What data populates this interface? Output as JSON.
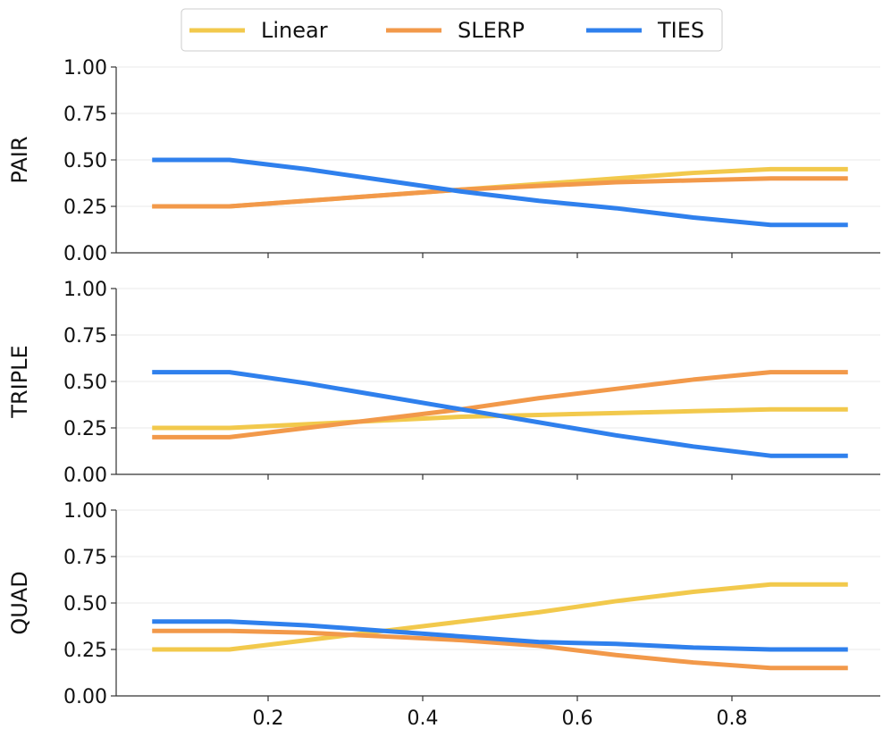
{
  "chart_data": [
    {
      "type": "line",
      "ylabel": "PAIR",
      "ylim": [
        0,
        1
      ],
      "xlim": [
        0,
        1
      ],
      "x": [
        0.05,
        0.15,
        0.25,
        0.35,
        0.45,
        0.55,
        0.65,
        0.75,
        0.85,
        0.95
      ],
      "series": [
        {
          "name": "Linear",
          "color": "#f2c94c",
          "values": [
            0.25,
            0.25,
            0.28,
            0.31,
            0.34,
            0.37,
            0.4,
            0.43,
            0.45,
            0.45
          ]
        },
        {
          "name": "SLERP",
          "color": "#f2994a",
          "values": [
            0.25,
            0.25,
            0.28,
            0.31,
            0.34,
            0.36,
            0.38,
            0.39,
            0.4,
            0.4
          ]
        },
        {
          "name": "TIES",
          "color": "#2f80ed",
          "values": [
            0.5,
            0.5,
            0.45,
            0.39,
            0.33,
            0.28,
            0.24,
            0.19,
            0.15,
            0.15
          ]
        }
      ]
    },
    {
      "type": "line",
      "ylabel": "TRIPLE",
      "ylim": [
        0,
        1
      ],
      "xlim": [
        0,
        1
      ],
      "x": [
        0.05,
        0.15,
        0.25,
        0.35,
        0.45,
        0.55,
        0.65,
        0.75,
        0.85,
        0.95
      ],
      "series": [
        {
          "name": "Linear",
          "color": "#f2c94c",
          "values": [
            0.25,
            0.25,
            0.27,
            0.29,
            0.31,
            0.32,
            0.33,
            0.34,
            0.35,
            0.35
          ]
        },
        {
          "name": "SLERP",
          "color": "#f2994a",
          "values": [
            0.2,
            0.2,
            0.25,
            0.3,
            0.35,
            0.41,
            0.46,
            0.51,
            0.55,
            0.55
          ]
        },
        {
          "name": "TIES",
          "color": "#2f80ed",
          "values": [
            0.55,
            0.55,
            0.49,
            0.42,
            0.35,
            0.28,
            0.21,
            0.15,
            0.1,
            0.1
          ]
        }
      ]
    },
    {
      "type": "line",
      "ylabel": "QUAD",
      "ylim": [
        0,
        1
      ],
      "xlim": [
        0,
        1
      ],
      "x": [
        0.05,
        0.15,
        0.25,
        0.35,
        0.45,
        0.55,
        0.65,
        0.75,
        0.85,
        0.95
      ],
      "series": [
        {
          "name": "Linear",
          "color": "#f2c94c",
          "values": [
            0.25,
            0.25,
            0.3,
            0.35,
            0.4,
            0.45,
            0.51,
            0.56,
            0.6,
            0.6
          ]
        },
        {
          "name": "SLERP",
          "color": "#f2994a",
          "values": [
            0.35,
            0.35,
            0.34,
            0.32,
            0.3,
            0.27,
            0.22,
            0.18,
            0.15,
            0.15
          ]
        },
        {
          "name": "TIES",
          "color": "#2f80ed",
          "values": [
            0.4,
            0.4,
            0.38,
            0.35,
            0.32,
            0.29,
            0.28,
            0.26,
            0.25,
            0.25
          ]
        }
      ]
    }
  ],
  "yticks": [
    "0.00",
    "0.25",
    "0.50",
    "0.75",
    "1.00"
  ],
  "xticks": [
    "0.2",
    "0.4",
    "0.6",
    "0.8"
  ],
  "grid": "horizontal",
  "legend": {
    "placement": "top-center",
    "entries": [
      "Linear",
      "SLERP",
      "TIES"
    ]
  }
}
